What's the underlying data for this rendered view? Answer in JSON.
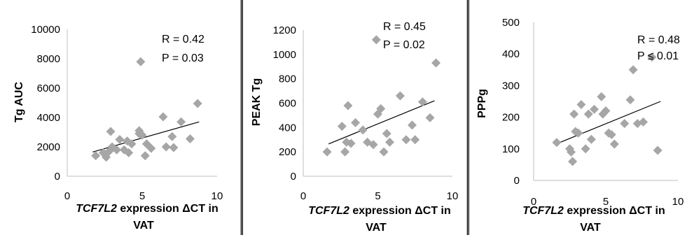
{
  "chart_data": [
    {
      "type": "scatter",
      "ylabel": "Tg AUC",
      "xlabel_italic": "TCF7L2",
      "xlabel_rest": " expression ΔCT in",
      "xlabel_line2": "VAT",
      "xlim": [
        0,
        10
      ],
      "ylim": [
        0,
        10000
      ],
      "xticks": [
        0,
        5,
        10
      ],
      "yticks": [
        0,
        2000,
        4000,
        6000,
        8000,
        10000
      ],
      "annotation": [
        "R = 0.42",
        "P = 0.03"
      ],
      "trend": [
        [
          1.7,
          1650
        ],
        [
          8.8,
          3700
        ]
      ],
      "points": [
        [
          1.9,
          1400
        ],
        [
          2.4,
          1600
        ],
        [
          2.6,
          1300
        ],
        [
          2.8,
          1700
        ],
        [
          3.0,
          2000
        ],
        [
          2.9,
          3050
        ],
        [
          3.3,
          1800
        ],
        [
          3.5,
          2500
        ],
        [
          3.8,
          1800
        ],
        [
          4.1,
          1600
        ],
        [
          4.0,
          2400
        ],
        [
          4.3,
          2200
        ],
        [
          4.8,
          2900
        ],
        [
          5.0,
          2800
        ],
        [
          4.8,
          3100
        ],
        [
          5.2,
          1400
        ],
        [
          5.3,
          2200
        ],
        [
          5.6,
          1900
        ],
        [
          4.9,
          7800
        ],
        [
          6.4,
          4050
        ],
        [
          6.6,
          2000
        ],
        [
          7.0,
          2700
        ],
        [
          7.1,
          1950
        ],
        [
          7.6,
          3700
        ],
        [
          8.2,
          2550
        ],
        [
          8.7,
          4950
        ]
      ]
    },
    {
      "type": "scatter",
      "ylabel": "PEAK Tg",
      "xlabel_italic": "TCF7L2",
      "xlabel_rest": " expression ΔCT in",
      "xlabel_line2": "VAT",
      "xlim": [
        0,
        10
      ],
      "ylim": [
        0,
        1200
      ],
      "xticks": [
        0,
        5,
        10
      ],
      "yticks": [
        0,
        200,
        400,
        600,
        800,
        1000,
        1200
      ],
      "annotation": [
        "R = 0.45",
        "P = 0.02"
      ],
      "trend": [
        [
          1.7,
          265
        ],
        [
          8.8,
          620
        ]
      ],
      "points": [
        [
          1.6,
          200
        ],
        [
          2.6,
          410
        ],
        [
          2.8,
          200
        ],
        [
          3.0,
          580
        ],
        [
          2.9,
          280
        ],
        [
          3.2,
          270
        ],
        [
          3.5,
          440
        ],
        [
          4.0,
          380
        ],
        [
          4.3,
          280
        ],
        [
          4.7,
          260
        ],
        [
          5.0,
          510
        ],
        [
          5.2,
          555
        ],
        [
          5.4,
          200
        ],
        [
          5.6,
          350
        ],
        [
          5.8,
          280
        ],
        [
          4.9,
          1120
        ],
        [
          6.5,
          660
        ],
        [
          6.9,
          300
        ],
        [
          7.3,
          420
        ],
        [
          7.5,
          300
        ],
        [
          8.0,
          610
        ],
        [
          8.5,
          480
        ],
        [
          8.9,
          930
        ]
      ]
    },
    {
      "type": "scatter",
      "ylabel": "PPPg",
      "xlabel_italic": "TCF7L2",
      "xlabel_rest": " expression ΔCT in",
      "xlabel_line2": "VAT",
      "xlim": [
        0,
        10
      ],
      "ylim": [
        0,
        500
      ],
      "xticks": [
        0,
        5,
        10
      ],
      "yticks": [
        0,
        100,
        200,
        300,
        400,
        500
      ],
      "annotation": [
        "R = 0.48",
        "P ≤ 0.01"
      ],
      "trend": [
        [
          1.7,
          118
        ],
        [
          8.8,
          250
        ]
      ],
      "points": [
        [
          1.6,
          120
        ],
        [
          2.5,
          100
        ],
        [
          2.6,
          90
        ],
        [
          2.7,
          60
        ],
        [
          2.8,
          210
        ],
        [
          2.9,
          155
        ],
        [
          3.1,
          150
        ],
        [
          3.3,
          240
        ],
        [
          3.6,
          100
        ],
        [
          3.8,
          210
        ],
        [
          4.0,
          130
        ],
        [
          4.2,
          225
        ],
        [
          4.7,
          265
        ],
        [
          4.8,
          210
        ],
        [
          5.0,
          220
        ],
        [
          5.2,
          150
        ],
        [
          5.4,
          145
        ],
        [
          5.6,
          115
        ],
        [
          6.3,
          180
        ],
        [
          6.7,
          255
        ],
        [
          6.9,
          350
        ],
        [
          7.2,
          180
        ],
        [
          7.6,
          185
        ],
        [
          8.2,
          390
        ],
        [
          8.6,
          95
        ]
      ]
    }
  ]
}
